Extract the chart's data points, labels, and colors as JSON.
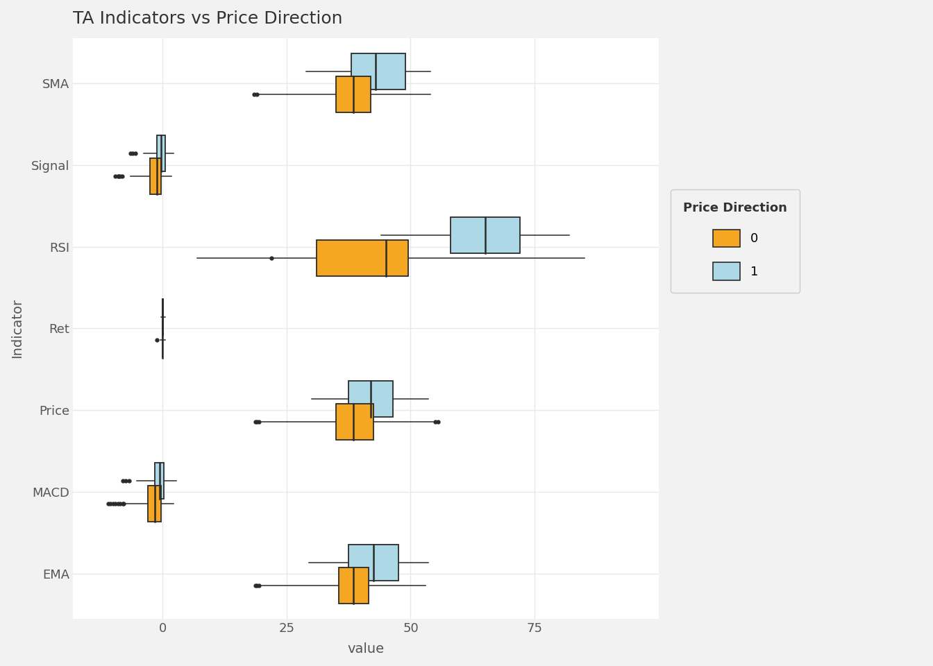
{
  "title": "TA Indicators vs Price Direction",
  "xlabel": "value",
  "ylabel": "Indicator",
  "background_color": "#f2f2f2",
  "plot_bg_color": "#ffffff",
  "grid_color": "#e8e8e8",
  "color_0": "#f5a623",
  "color_1": "#add8e6",
  "edge_color": "#2b2b2b",
  "indicators": [
    "EMA",
    "MACD",
    "Price",
    "Ret",
    "RSI",
    "Signal",
    "SMA"
  ],
  "legend_title": "Price Direction",
  "xlim": [
    -18,
    100
  ],
  "xticks": [
    0,
    25,
    50,
    75
  ],
  "box_data": {
    "SMA": {
      "0": {
        "whislo": 19.5,
        "q1": 35.0,
        "med": 38.5,
        "q3": 42.0,
        "whishi": 54.0,
        "fliers_low": [
          19.0,
          18.5
        ],
        "fliers_high": []
      },
      "1": {
        "whislo": 29.0,
        "q1": 38.0,
        "med": 43.0,
        "q3": 49.0,
        "whishi": 54.0,
        "fliers_low": [],
        "fliers_high": []
      }
    },
    "Signal": {
      "0": {
        "whislo": -6.5,
        "q1": -2.5,
        "med": -1.2,
        "q3": -0.3,
        "whishi": 1.8,
        "fliers_low": [
          -9.5,
          -9.0,
          -8.8,
          -8.5,
          -8.2
        ],
        "fliers_high": []
      },
      "1": {
        "whislo": -3.8,
        "q1": -1.2,
        "med": -0.3,
        "q3": 0.5,
        "whishi": 2.2,
        "fliers_low": [
          -6.5,
          -6.0,
          -5.5
        ],
        "fliers_high": []
      }
    },
    "RSI": {
      "0": {
        "whislo": 7.0,
        "q1": 31.0,
        "med": 45.0,
        "q3": 49.5,
        "whishi": 85.0,
        "fliers_low": [
          22.0
        ],
        "fliers_high": []
      },
      "1": {
        "whislo": 44.0,
        "q1": 58.0,
        "med": 65.0,
        "q3": 72.0,
        "whishi": 82.0,
        "fliers_low": [],
        "fliers_high": []
      }
    },
    "Ret": {
      "0": {
        "whislo": -0.5,
        "q1": -0.05,
        "med": 0.0,
        "q3": 0.05,
        "whishi": 0.5,
        "fliers_low": [
          -1.2
        ],
        "fliers_high": []
      },
      "1": {
        "whislo": -0.3,
        "q1": -0.02,
        "med": 0.05,
        "q3": 0.12,
        "whishi": 0.6,
        "fliers_low": [],
        "fliers_high": []
      }
    },
    "Price": {
      "0": {
        "whislo": 20.0,
        "q1": 35.0,
        "med": 38.5,
        "q3": 42.5,
        "whishi": 54.5,
        "fliers_low": [
          19.5,
          19.0,
          18.8
        ],
        "fliers_high": [
          55.0,
          55.5
        ]
      },
      "1": {
        "whislo": 30.0,
        "q1": 37.5,
        "med": 42.0,
        "q3": 46.5,
        "whishi": 53.5,
        "fliers_low": [],
        "fliers_high": []
      }
    },
    "MACD": {
      "0": {
        "whislo": -7.5,
        "q1": -3.0,
        "med": -1.5,
        "q3": -0.3,
        "whishi": 2.2,
        "fliers_low": [
          -11.0,
          -10.5,
          -10.0,
          -9.5,
          -9.0,
          -8.5,
          -8.0,
          -7.8
        ],
        "fliers_high": []
      },
      "1": {
        "whislo": -5.2,
        "q1": -1.5,
        "med": -0.6,
        "q3": 0.3,
        "whishi": 2.8,
        "fliers_low": [
          -8.0,
          -7.5,
          -6.8
        ],
        "fliers_high": []
      }
    },
    "EMA": {
      "0": {
        "whislo": 20.0,
        "q1": 35.5,
        "med": 38.5,
        "q3": 41.5,
        "whishi": 53.0,
        "fliers_low": [
          19.5,
          19.0,
          18.8
        ],
        "fliers_high": []
      },
      "1": {
        "whislo": 29.5,
        "q1": 37.5,
        "med": 42.5,
        "q3": 47.5,
        "whishi": 53.5,
        "fliers_low": [],
        "fliers_high": []
      }
    }
  }
}
